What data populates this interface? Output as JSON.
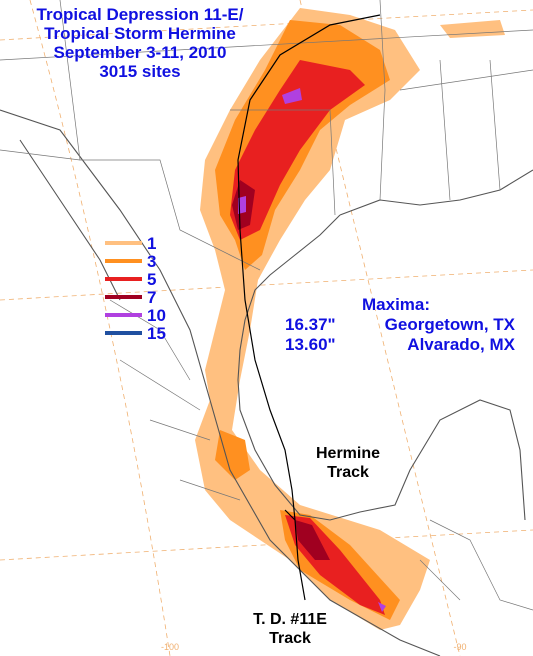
{
  "title": [
    "Tropical Depression 11-E/",
    "Tropical Storm Hermine",
    "September 3-11, 2010",
    "3015 sites"
  ],
  "legend": [
    {
      "value": 1,
      "color": "#ffc080"
    },
    {
      "value": 3,
      "color": "#ff9020"
    },
    {
      "value": 5,
      "color": "#e82020"
    },
    {
      "value": 7,
      "color": "#a00020"
    },
    {
      "value": 10,
      "color": "#b040e0"
    },
    {
      "value": 15,
      "color": "#2050a0"
    }
  ],
  "maxima": {
    "heading": "Maxima:",
    "entries": [
      {
        "amount": "16.37\"",
        "place": "Georgetown, TX"
      },
      {
        "amount": "13.60\"",
        "place": "Alvarado, MX"
      }
    ]
  },
  "tracks": [
    {
      "label": [
        "Hermine",
        "Track"
      ]
    },
    {
      "label": [
        "T. D. #11E",
        "Track"
      ]
    }
  ],
  "longitude_labels": [
    -100,
    -90
  ]
}
